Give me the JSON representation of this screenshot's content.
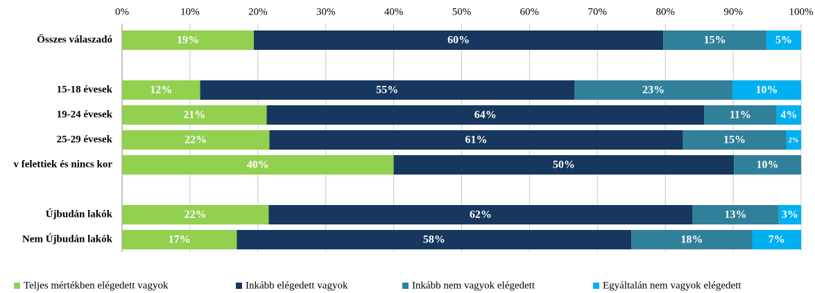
{
  "chart_data": {
    "type": "stacked-barh",
    "categories": [
      "Összes válaszadó",
      null,
      "15-18 évesek",
      "19-24 évesek",
      "25-29 évesek",
      "v felettiek és nincs kor",
      null,
      "Újbudán lakók",
      "Nem Újbudán lakók"
    ],
    "series": [
      {
        "name": "Teljes mértékben elégedett vagyok",
        "color": "#92d050",
        "values": [
          19.4,
          null,
          11.5,
          21.3,
          21.7,
          40,
          null,
          21.6,
          16.9
        ],
        "value_labels": [
          "19%",
          null,
          "12%",
          "21%",
          "22%",
          "40%",
          null,
          "22%",
          "17%"
        ]
      },
      {
        "name": "Inkább elégedett vagyok",
        "color": "#17375e",
        "values": [
          60.3,
          null,
          55.1,
          64.4,
          60.9,
          50.1,
          null,
          62.4,
          58.1
        ],
        "value_labels": [
          "60%",
          null,
          "55%",
          "64%",
          "61%",
          "50%",
          null,
          "62%",
          "58%"
        ]
      },
      {
        "name": "Inkább nem vagyok elégedett",
        "color": "#31809a",
        "values": [
          15.2,
          null,
          23.3,
          10.7,
          15.2,
          9.9,
          null,
          12.7,
          17.8
        ],
        "value_labels": [
          "15%",
          null,
          "23%",
          "11%",
          "15%",
          "10%",
          null,
          "13%",
          "18%"
        ]
      },
      {
        "name": "Egyáltalán nem vagyok elégedett",
        "color": "#00b0f0",
        "values": [
          5.1,
          null,
          10.1,
          3.6,
          2.2,
          null,
          null,
          3.3,
          7.2
        ],
        "value_labels": [
          "5%",
          null,
          "10%",
          "4%",
          "2%",
          null,
          null,
          "3%",
          "7%"
        ]
      }
    ],
    "xlim": [
      0,
      100
    ],
    "xticks": [
      {
        "value": 0,
        "label": "0%"
      },
      {
        "value": 10,
        "label": "10%"
      },
      {
        "value": 20,
        "label": "20%"
      },
      {
        "value": 30,
        "label": "30%"
      },
      {
        "value": 40,
        "label": "40%"
      },
      {
        "value": 50,
        "label": "50%"
      },
      {
        "value": 60,
        "label": "60%"
      },
      {
        "value": 70,
        "label": "70%"
      },
      {
        "value": 80,
        "label": "80%"
      },
      {
        "value": 90,
        "label": "90%"
      },
      {
        "value": 100,
        "label": "100%"
      }
    ],
    "grid": true,
    "legend": "bottom"
  }
}
